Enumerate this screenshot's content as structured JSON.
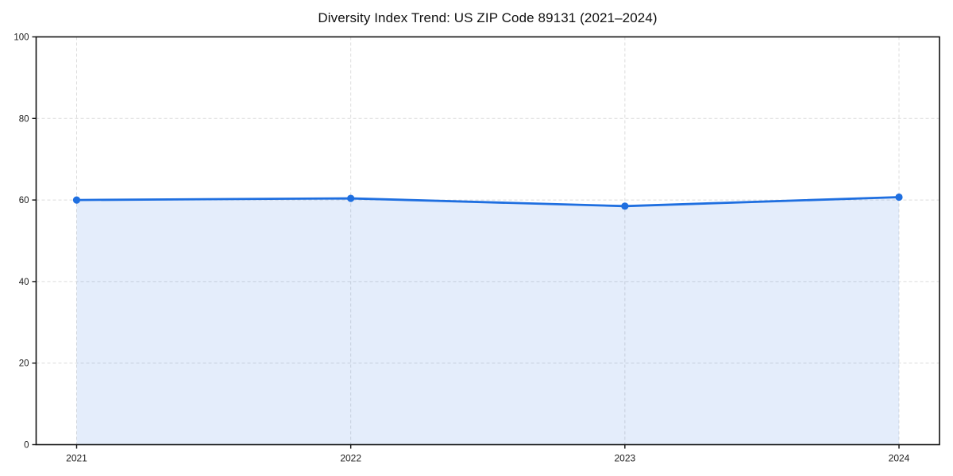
{
  "chart_data": {
    "type": "area",
    "title": "Diversity Index Trend: US ZIP Code 89131 (2021–2024)",
    "categories": [
      "2021",
      "2022",
      "2023",
      "2024"
    ],
    "series": [
      {
        "name": "Diversity Index",
        "values": [
          60.0,
          60.4,
          58.5,
          60.7
        ]
      }
    ],
    "xlabel": "",
    "ylabel": "",
    "ylim": [
      0,
      100
    ],
    "y_ticks": [
      0,
      20,
      40,
      60,
      80,
      100
    ],
    "grid": true,
    "grid_style": "dashed",
    "legend": "none",
    "marker": "circle",
    "colors": {
      "line": "#1f6fe0",
      "marker": "#1f6fe0",
      "fill": "#1f6fe0",
      "fill_opacity": 0.12,
      "grid": "#dcdcdc",
      "frame": "#111111",
      "tick": "#111111",
      "tick_label": "#1a1a1a",
      "title": "#111111",
      "background": "#ffffff"
    }
  }
}
